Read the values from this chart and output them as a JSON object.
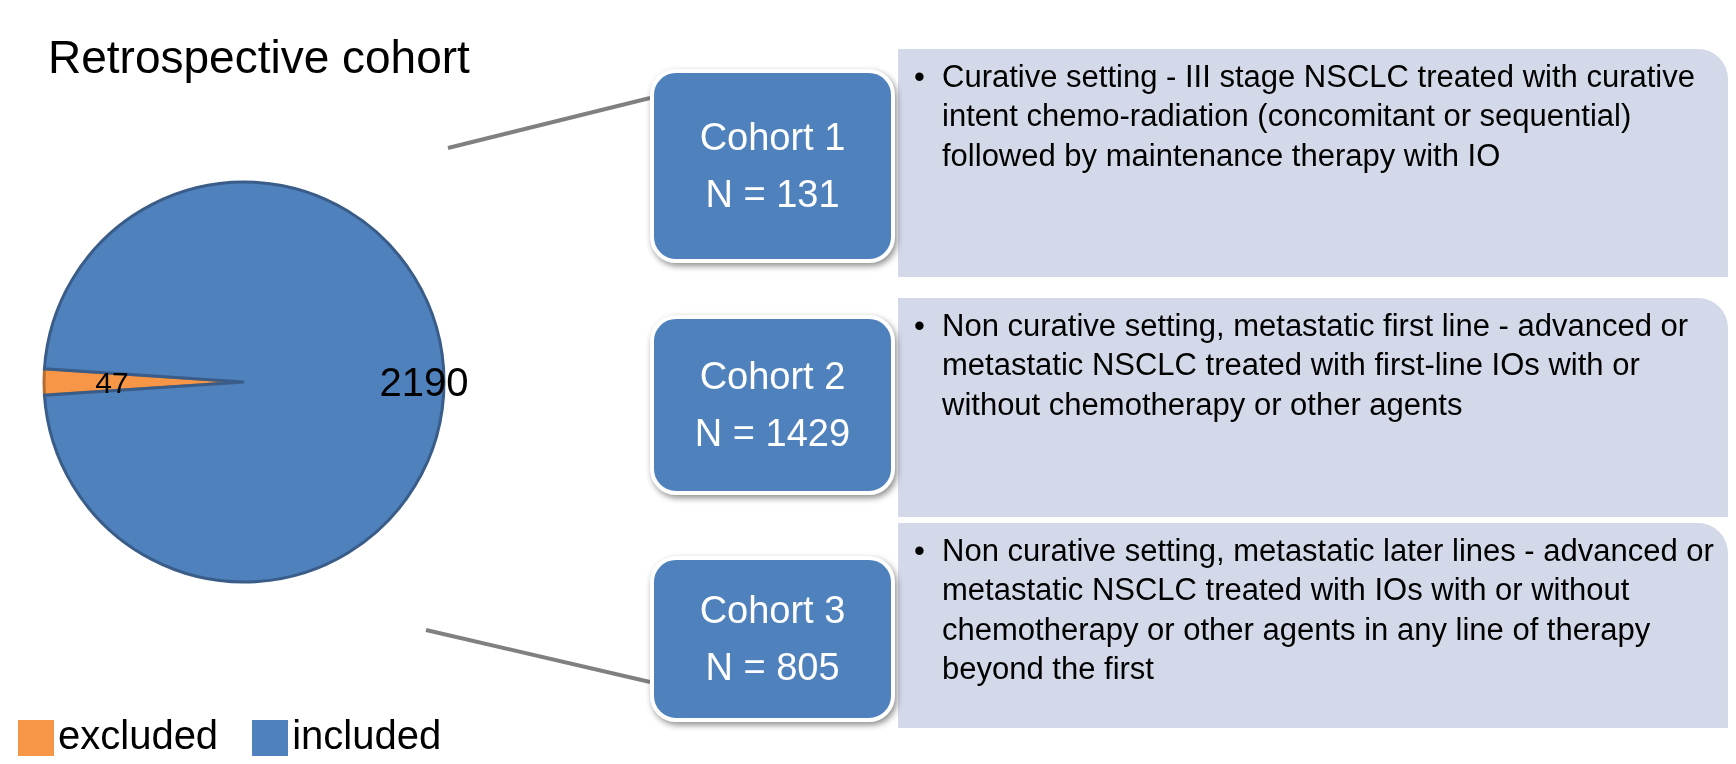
{
  "chart_data": {
    "type": "pie",
    "title": "Retrospective cohort",
    "categories": [
      "excluded",
      "included"
    ],
    "values": [
      47,
      2190
    ],
    "colors": [
      "#f79646",
      "#4f81bd"
    ],
    "data_labels": true,
    "legend": "bottom left",
    "annotations": [
      "Cohort 1",
      "N = 131",
      "• Curative setting - III stage NSCLC treated with curative intent chemo-radiation (concomitant or sequential) followed by maintenance therapy with IO",
      "Cohort 2",
      "N = 1429",
      "• Non curative setting, metastatic first line - advanced or metastatic NSCLC treated with first-line IOs with or without chemotherapy or other agents",
      "Cohort 3",
      "N = 805",
      "• Non curative setting, metastatic later lines - advanced or metastatic NSCLC treated with IOs with or without chemotherapy or other agents in any line of therapy beyond the first"
    ]
  }
}
